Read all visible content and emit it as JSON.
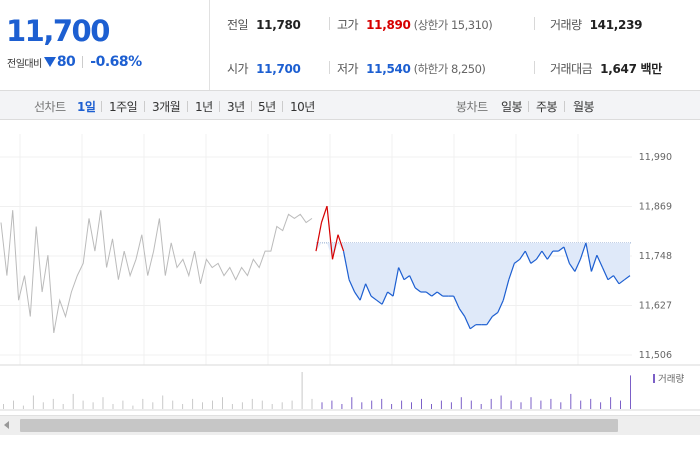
{
  "quote": {
    "price": "11,700",
    "change_label": "전일대비",
    "change_amount": "80",
    "change_rate": "-0.68%"
  },
  "stats": {
    "prev_close_label": "전일",
    "prev_close": "11,780",
    "open_label": "시가",
    "open": "11,700",
    "high_label": "고가",
    "high": "11,890",
    "upper_limit": "(상한가 15,310)",
    "low_label": "저가",
    "low": "11,540",
    "lower_limit": "(하한가 8,250)",
    "volume_label": "거래량",
    "volume": "141,239",
    "amount_label": "거래대금",
    "amount": "1,647 백만"
  },
  "tabs": {
    "line_label": "선차트",
    "line_periods": [
      "1일",
      "1주일",
      "3개월",
      "1년",
      "3년",
      "5년",
      "10년"
    ],
    "active_index": 0,
    "candle_label": "봉차트",
    "candle_periods": [
      "일봉",
      "주봉",
      "월봉"
    ]
  },
  "colors": {
    "rise": "#d60000",
    "fall": "#1d5fd1",
    "prev_day_line": "#bbbbbb",
    "fill": "#dfe9f9"
  },
  "chart_data": {
    "type": "line",
    "y_ticks": [
      "11,990",
      "11,869",
      "11,748",
      "11,627",
      "11,506"
    ],
    "ylim": [
      11506,
      11990
    ],
    "reference_price": 11780,
    "volume_legend": "거래량",
    "series": [
      {
        "values": [
          11830,
          11700,
          11860,
          11640,
          11700,
          11600,
          11820,
          11660,
          11750,
          11560,
          11640,
          11600,
          11660,
          11700,
          11730,
          11840,
          11760,
          11860,
          11720,
          11790,
          11690,
          11760,
          11700,
          11740,
          11800,
          11700,
          11760,
          11840,
          11700,
          11780,
          11720,
          11740,
          11700,
          11760,
          11680,
          11740,
          11720,
          11730,
          11700,
          11720,
          11690,
          11720,
          11700,
          11740,
          11720,
          11760,
          11760,
          11820,
          11810,
          11850,
          11840,
          11850,
          11830,
          11840
        ]
      },
      {
        "values": [
          11760,
          11830,
          11870,
          11740,
          11800,
          11760,
          11690,
          11660,
          11640,
          11680,
          11650,
          11640,
          11630,
          11660,
          11650,
          11720,
          11690,
          11700,
          11670,
          11660,
          11660,
          11650,
          11660,
          11650,
          11650,
          11650,
          11620,
          11600,
          11570,
          11580,
          11580,
          11580,
          11600,
          11610,
          11640,
          11690,
          11730,
          11740,
          11760,
          11730,
          11740,
          11760,
          11740,
          11760,
          11760,
          11770,
          11730,
          11710,
          11740,
          11780,
          11710,
          11750,
          11720,
          11690,
          11700,
          11680,
          11690,
          11700
        ]
      }
    ],
    "volume": [
      3,
      5,
      2,
      8,
      4,
      6,
      3,
      9,
      5,
      4,
      7,
      3,
      5,
      2,
      6,
      4,
      8,
      5,
      3,
      6,
      4,
      5,
      7,
      3,
      4,
      6,
      5,
      3,
      4,
      5,
      22,
      6,
      4,
      5,
      3,
      7,
      4,
      5,
      6,
      3,
      5,
      4,
      6,
      3,
      5,
      4,
      7,
      5,
      3,
      6,
      8,
      5,
      4,
      7,
      5,
      6,
      4,
      9,
      5,
      6,
      4,
      7,
      5,
      20
    ]
  }
}
